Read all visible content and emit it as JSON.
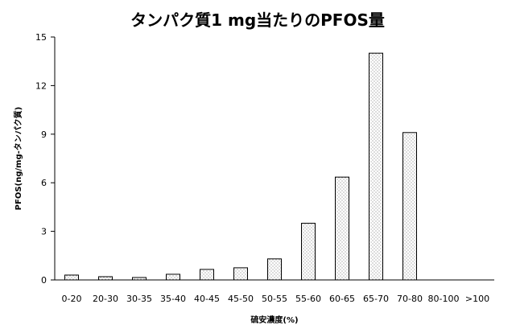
{
  "chart_data": {
    "type": "bar",
    "title": "タンパク質1 mg当たりのPFOS量",
    "xlabel": "硫安濃度(%)",
    "ylabel": "PFOS(ng/mg-タンパク質)",
    "categories": [
      "0-20",
      "20-30",
      "30-35",
      "35-40",
      "40-45",
      "45-50",
      "50-55",
      "55-60",
      "60-65",
      "65-70",
      "70-80",
      "80-100",
      ">100"
    ],
    "values": [
      0.3,
      0.2,
      0.15,
      0.35,
      0.65,
      0.75,
      1.3,
      3.5,
      6.35,
      14.0,
      9.1,
      0,
      0
    ],
    "ylim": [
      0,
      15
    ],
    "yticks": [
      "0",
      "3",
      "6",
      "9",
      "12",
      "15"
    ],
    "yticks_values": [
      0,
      3,
      6,
      9,
      12,
      15
    ],
    "grid": false,
    "bar_fill": "dotted",
    "colors": {
      "bar_border": "#000000",
      "dots": "#555555",
      "background": "#ffffff"
    }
  }
}
